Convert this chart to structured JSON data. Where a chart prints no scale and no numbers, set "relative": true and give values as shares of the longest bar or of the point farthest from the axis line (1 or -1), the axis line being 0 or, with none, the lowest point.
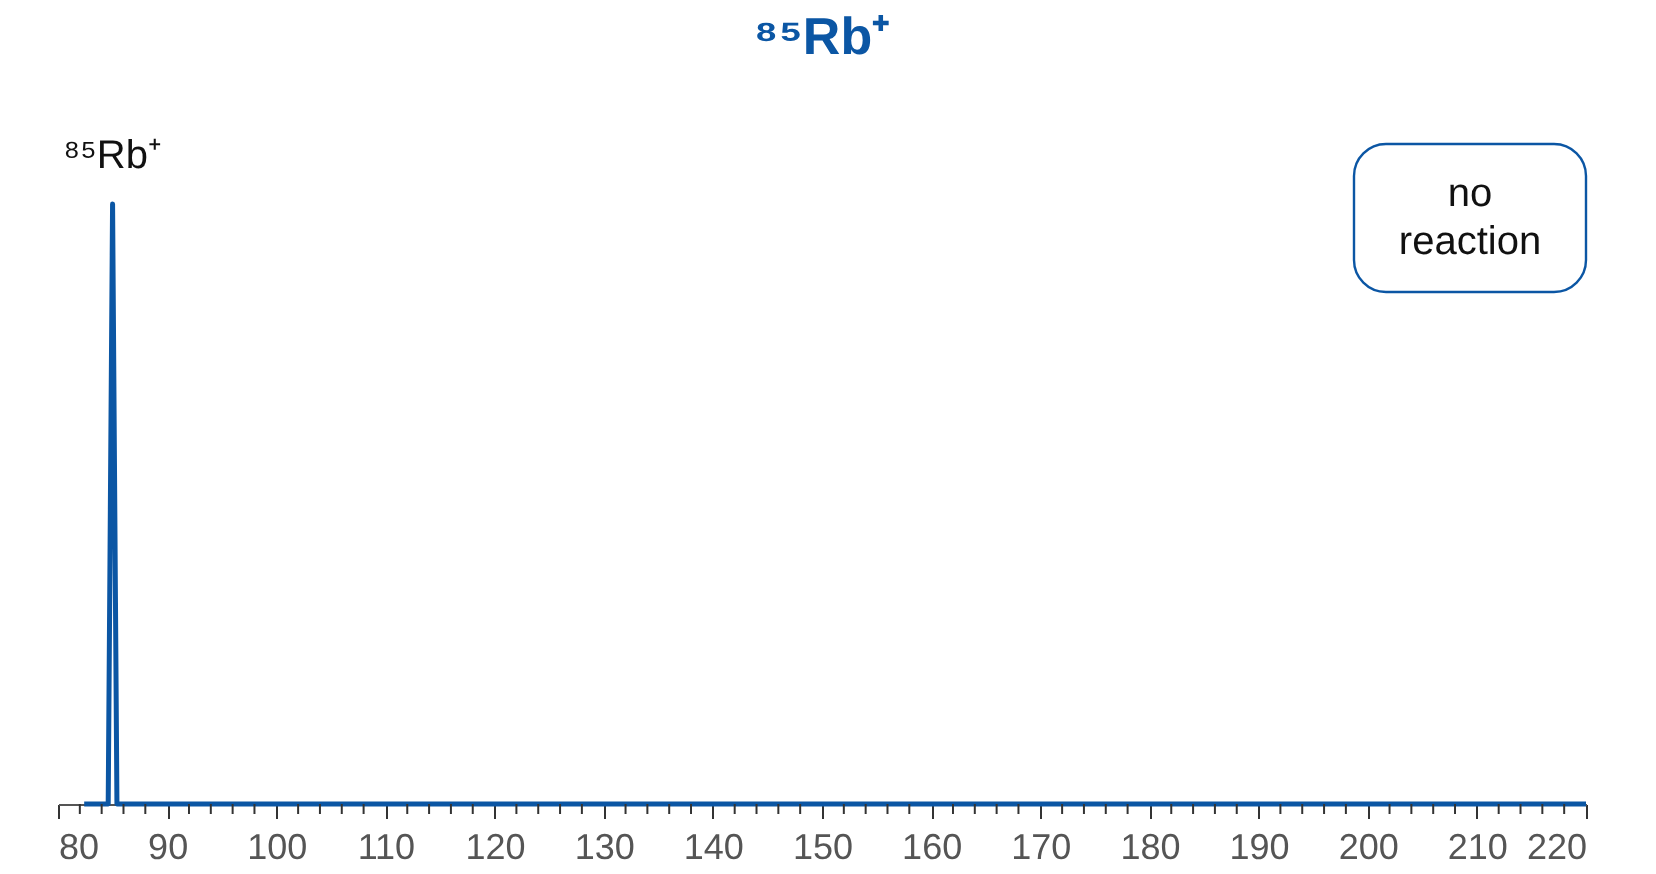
{
  "chart_data": {
    "type": "line",
    "title": "⁸⁵Rb⁺",
    "relative": true,
    "x": [
      82.4,
      84.6,
      85.0,
      85.4,
      220
    ],
    "series": [
      {
        "color": "#0b56a4",
        "values": [
          0,
          0,
          1,
          0,
          0
        ]
      }
    ],
    "xlim": [
      80,
      220
    ],
    "xticks": [
      80,
      {
        "value": 82,
        "label": null
      },
      {
        "value": 84,
        "label": null
      },
      {
        "value": 86,
        "label": null
      },
      {
        "value": 88,
        "label": null
      },
      90,
      {
        "value": 92,
        "label": null
      },
      {
        "value": 94,
        "label": null
      },
      {
        "value": 96,
        "label": null
      },
      {
        "value": 98,
        "label": null
      },
      100,
      {
        "value": 102,
        "label": null
      },
      {
        "value": 104,
        "label": null
      },
      {
        "value": 106,
        "label": null
      },
      {
        "value": 108,
        "label": null
      },
      110,
      {
        "value": 112,
        "label": null
      },
      {
        "value": 114,
        "label": null
      },
      {
        "value": 116,
        "label": null
      },
      {
        "value": 118,
        "label": null
      },
      120,
      {
        "value": 122,
        "label": null
      },
      {
        "value": 124,
        "label": null
      },
      {
        "value": 126,
        "label": null
      },
      {
        "value": 128,
        "label": null
      },
      130,
      {
        "value": 132,
        "label": null
      },
      {
        "value": 134,
        "label": null
      },
      {
        "value": 136,
        "label": null
      },
      {
        "value": 138,
        "label": null
      },
      140,
      {
        "value": 142,
        "label": null
      },
      {
        "value": 144,
        "label": null
      },
      {
        "value": 146,
        "label": null
      },
      {
        "value": 148,
        "label": null
      },
      150,
      {
        "value": 152,
        "label": null
      },
      {
        "value": 154,
        "label": null
      },
      {
        "value": 156,
        "label": null
      },
      {
        "value": 158,
        "label": null
      },
      160,
      {
        "value": 162,
        "label": null
      },
      {
        "value": 164,
        "label": null
      },
      {
        "value": 166,
        "label": null
      },
      {
        "value": 168,
        "label": null
      },
      170,
      {
        "value": 172,
        "label": null
      },
      {
        "value": 174,
        "label": null
      },
      {
        "value": 176,
        "label": null
      },
      {
        "value": 178,
        "label": null
      },
      180,
      {
        "value": 182,
        "label": null
      },
      {
        "value": 184,
        "label": null
      },
      {
        "value": 186,
        "label": null
      },
      {
        "value": 188,
        "label": null
      },
      190,
      {
        "value": 192,
        "label": null
      },
      {
        "value": 194,
        "label": null
      },
      {
        "value": 196,
        "label": null
      },
      {
        "value": 198,
        "label": null
      },
      200,
      {
        "value": 202,
        "label": null
      },
      {
        "value": 204,
        "label": null
      },
      {
        "value": 206,
        "label": null
      },
      {
        "value": 208,
        "label": null
      },
      210,
      {
        "value": 212,
        "label": null
      },
      {
        "value": 214,
        "label": null
      },
      {
        "value": 216,
        "label": null
      },
      {
        "value": 218,
        "label": null
      },
      220
    ],
    "grid": false,
    "legend": false,
    "marker": "none",
    "line_style": "solid",
    "annotations": [
      {
        "text": "⁸⁵Rb⁺",
        "x": 85,
        "y": 1
      },
      "no reaction"
    ]
  }
}
